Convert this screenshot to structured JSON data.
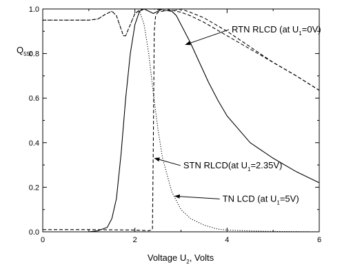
{
  "chart_data": {
    "type": "line",
    "xlabel": {
      "main": "Voltage U",
      "sub": "2",
      "rest": ", Volts"
    },
    "ylabel": {
      "main": "Q",
      "sub": "550"
    },
    "xlim": [
      0,
      6
    ],
    "ylim": [
      0,
      1.0
    ],
    "x_ticks": [
      "0",
      "2",
      "4",
      "6"
    ],
    "y_ticks": [
      "0.0",
      "0.2",
      "0.4",
      "0.6",
      "0.8",
      "1.0"
    ],
    "grid": false,
    "series": [
      {
        "key": "rtn",
        "style": "dashed",
        "x": [
          0,
          0.5,
          1.0,
          1.2,
          1.35,
          1.5,
          1.6,
          1.7,
          1.75,
          1.8,
          1.9,
          2.0,
          2.1,
          2.2,
          2.4,
          2.6,
          2.8,
          3.0,
          3.2,
          3.5,
          4.0,
          4.5,
          5.0,
          5.5,
          6.0
        ],
        "y": [
          0.95,
          0.95,
          0.95,
          0.955,
          0.975,
          0.99,
          0.97,
          0.91,
          0.88,
          0.88,
          0.93,
          0.98,
          0.995,
          1.0,
          1.0,
          0.995,
          0.99,
          1.0,
          0.985,
          0.96,
          0.9,
          0.83,
          0.76,
          0.7,
          0.635
        ]
      },
      {
        "key": "stn",
        "style": "dashed",
        "x": [
          0,
          1.0,
          2.0,
          2.3,
          2.38,
          2.4,
          2.42,
          2.45,
          2.5,
          2.6,
          2.8,
          3.0,
          3.2,
          3.5,
          4.0,
          4.5,
          5.0,
          5.5,
          6.0
        ],
        "y": [
          0.01,
          0.01,
          0.008,
          0.005,
          0.01,
          0.4,
          0.9,
          0.97,
          0.985,
          0.99,
          0.995,
          0.985,
          0.97,
          0.94,
          0.88,
          0.82,
          0.76,
          0.7,
          0.635
        ]
      },
      {
        "key": "tn",
        "style": "dotted",
        "x": [
          0,
          0.5,
          1.0,
          1.2,
          1.35,
          1.5,
          1.6,
          1.7,
          1.75,
          1.8,
          1.9,
          2.0,
          2.1,
          2.2,
          2.3,
          2.4,
          2.5,
          2.6,
          2.8,
          3.0,
          3.2,
          3.5,
          3.8,
          4.0,
          4.5,
          5.0,
          6.0
        ],
        "y": [
          0.95,
          0.95,
          0.95,
          0.955,
          0.975,
          0.99,
          0.97,
          0.91,
          0.88,
          0.88,
          0.93,
          0.98,
          0.99,
          0.93,
          0.8,
          0.62,
          0.46,
          0.33,
          0.18,
          0.1,
          0.06,
          0.03,
          0.012,
          0.008,
          0.004,
          0.002,
          0.0
        ]
      },
      {
        "key": "solid",
        "style": "solid",
        "x": [
          0,
          1.0,
          1.2,
          1.4,
          1.5,
          1.6,
          1.7,
          1.8,
          1.9,
          2.0,
          2.1,
          2.2,
          2.3,
          2.4,
          2.5,
          2.6,
          2.7,
          2.8,
          2.9,
          3.0,
          3.2,
          3.4,
          3.6,
          3.8,
          4.0,
          4.5,
          5.0,
          5.5,
          6.0
        ],
        "y": [
          0.0,
          0.0,
          0.005,
          0.02,
          0.06,
          0.15,
          0.35,
          0.6,
          0.8,
          0.93,
          0.99,
          1.0,
          0.99,
          0.98,
          0.99,
          1.0,
          1.0,
          0.99,
          0.97,
          0.93,
          0.85,
          0.76,
          0.67,
          0.59,
          0.52,
          0.4,
          0.33,
          0.27,
          0.22
        ]
      }
    ],
    "annotations": [
      {
        "key": "rtn",
        "main": "RTN RLCD (at U",
        "sub": "1",
        "rest": "=0V)",
        "text_at": [
          4.1,
          0.895
        ],
        "arrow_to": [
          3.1,
          0.84
        ]
      },
      {
        "key": "stn",
        "main": "STN RLCD(at U",
        "sub": "1",
        "rest": "=2.35V)",
        "text_at": [
          3.05,
          0.285
        ],
        "arrow_to": [
          2.43,
          0.33
        ]
      },
      {
        "key": "tn",
        "main": "TN LCD (at U",
        "sub": "1",
        "rest": "=5V)",
        "text_at": [
          3.9,
          0.135
        ],
        "arrow_to": [
          2.87,
          0.16
        ]
      }
    ]
  }
}
